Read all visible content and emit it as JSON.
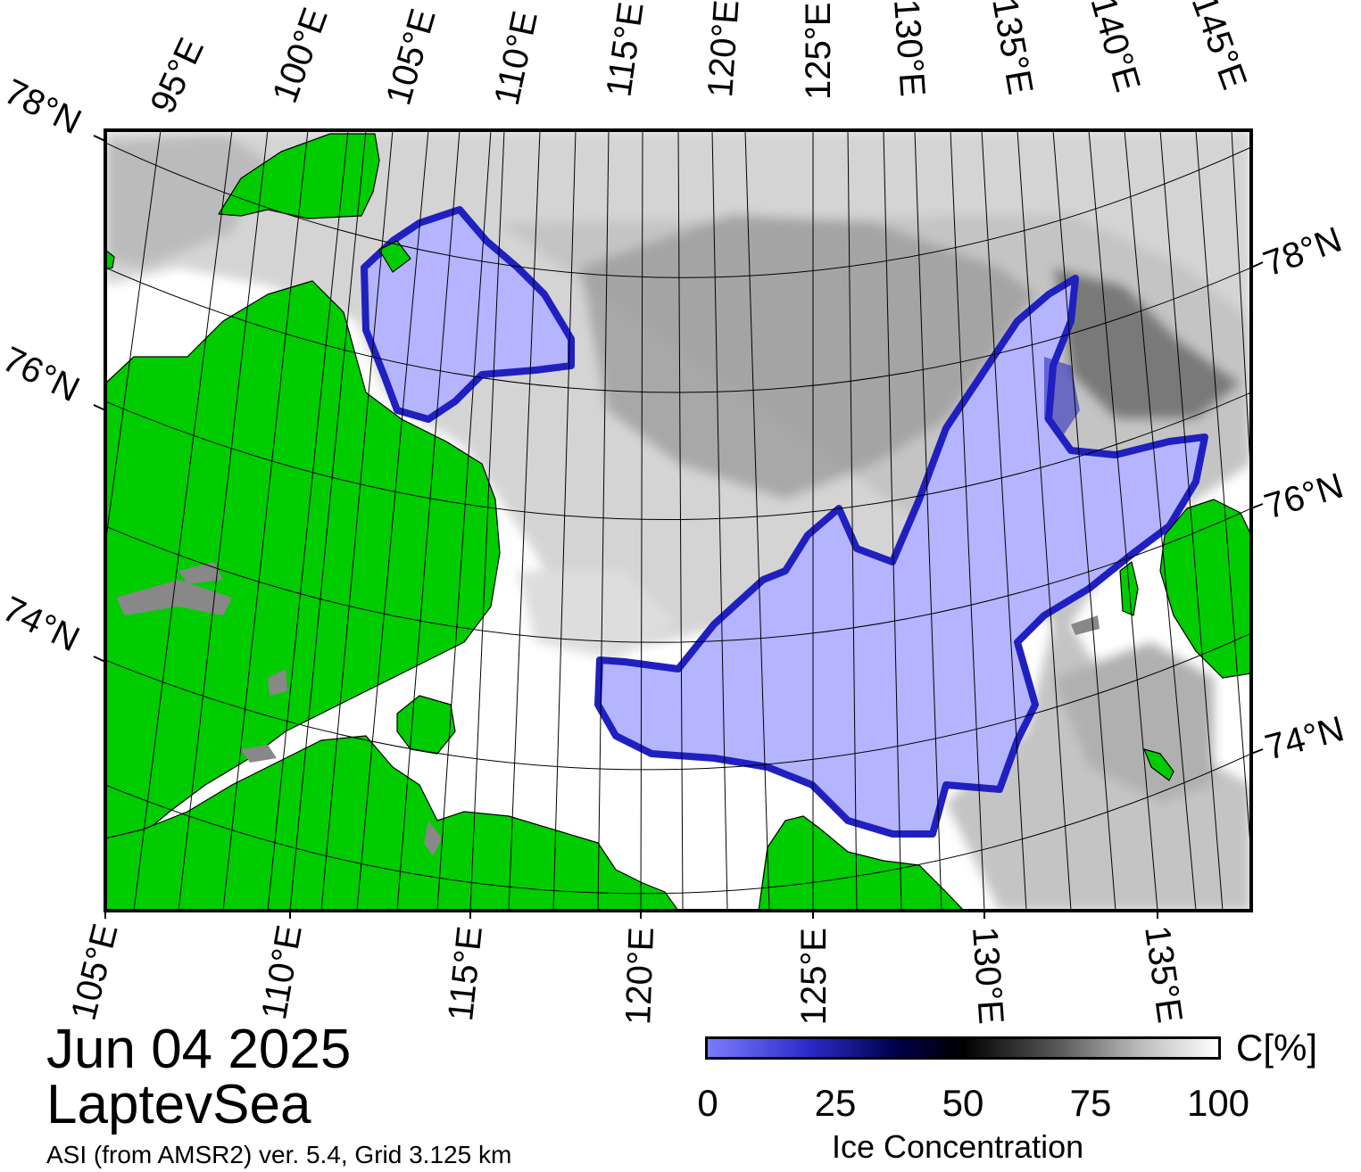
{
  "map": {
    "date": "Jun 04 2025",
    "region": "LaptevSea",
    "source": "ASI (from AMSR2) ver. 5.4,  Grid 3.125 km",
    "colors": {
      "land": "#00cc00",
      "ice_low": "#b4b4ff",
      "ice_edge": "#2020c0",
      "unknown_land": "#888888",
      "water": "#ffffff"
    },
    "top_lon_labels": [
      "95°E",
      "100°E",
      "105°E",
      "110°E",
      "115°E",
      "120°E",
      "125°E",
      "130°E",
      "135°E",
      "140°E",
      "145°E"
    ],
    "bottom_lon_labels": [
      "105°E",
      "110°E",
      "115°E",
      "120°E",
      "125°E",
      "130°E",
      "135°E"
    ],
    "left_lat_labels": [
      "78°N",
      "76°N",
      "74°N"
    ],
    "right_lat_labels": [
      "78°N",
      "76°N",
      "74°N"
    ]
  },
  "legend": {
    "ticks": [
      "0",
      "25",
      "50",
      "75",
      "100"
    ],
    "tick_values": [
      0,
      25,
      50,
      75,
      100
    ],
    "unit": "C[%]",
    "title": "Ice Concentration"
  }
}
